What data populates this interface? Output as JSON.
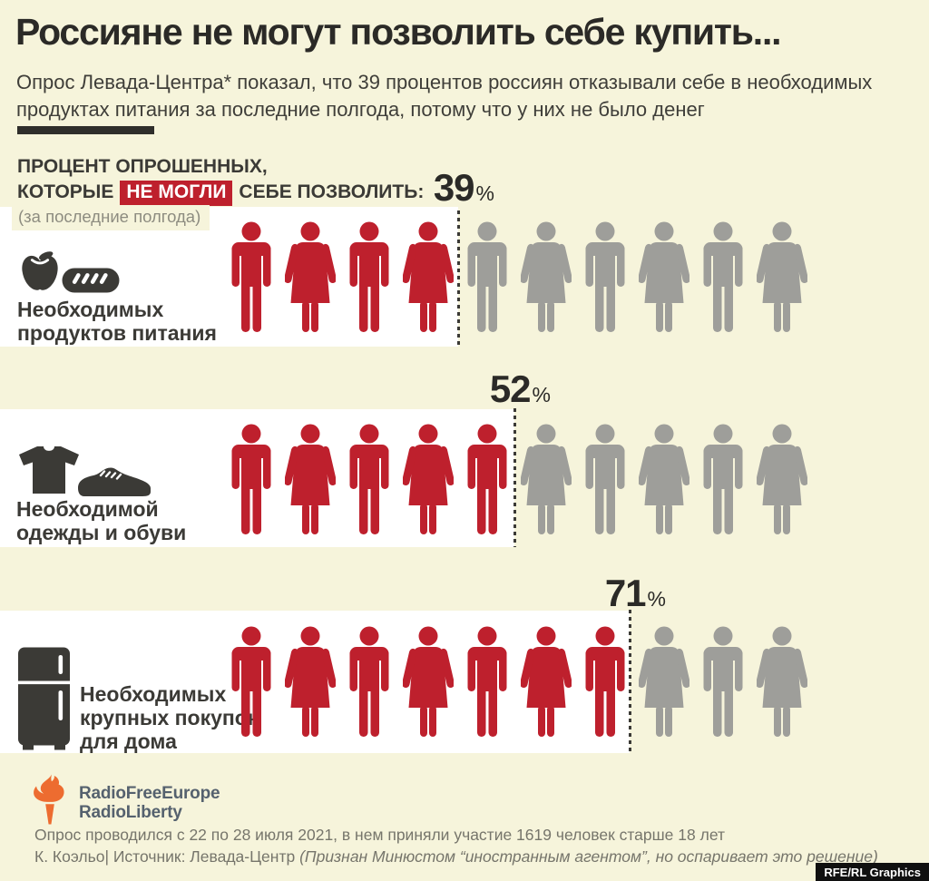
{
  "page": {
    "background": "#F6F4DB"
  },
  "header": {
    "title": "Россияне не могут позволить себе купить...",
    "subtitle": "Опрос Левада-Центра* показал, что 39 процентов россиян отказывали себе в необходимых\nпродуктах питания за последние полгода, потому что у них не было денег"
  },
  "legend": {
    "line1": "ПРОЦЕНТ ОПРОШЕННЫХ,",
    "line2_prefix": "КОТОРЫЕ",
    "line2_highlight": "НЕ МОГЛИ",
    "line2_suffix": "СЕБЕ ПОЗВОЛИТЬ:",
    "note": "(за последние полгода)"
  },
  "chart_data": {
    "type": "bar",
    "variant": "pictogram-people",
    "title": "Россияне не могут позволить себе купить...",
    "unit": "%",
    "total_figures_per_row": 10,
    "figure_pattern": "alternating male/female starting with male; red = could not afford, gray = rest",
    "categories": [
      "Необходимых продуктов питания",
      "Необходимой одежды и обуви",
      "Необходимых крупных покупок для дома"
    ],
    "values": [
      39,
      52,
      71
    ],
    "rows": [
      {
        "label": "Необходимых\nпродуктов питания",
        "percent": 39,
        "percent_label": "39",
        "red_figures": 4,
        "gray_figures": 6,
        "icons": [
          "apple-icon",
          "bread-icon"
        ]
      },
      {
        "label": "Необходимой\nодежды и обуви",
        "percent": 52,
        "percent_label": "52",
        "red_figures": 5,
        "gray_figures": 5,
        "icons": [
          "tshirt-icon",
          "shoe-icon"
        ]
      },
      {
        "label": "Необходимых\nкрупных покупок\nдля дома",
        "percent": 71,
        "percent_label": "71",
        "red_figures": 7,
        "gray_figures": 3,
        "icons": [
          "fridge-icon"
        ]
      }
    ],
    "colors": {
      "red": "#BE202D",
      "gray": "#9E9E9A",
      "band": "#FFFFFF",
      "background": "#F6F4DB",
      "icon_dark": "#3B3A36"
    }
  },
  "footer": {
    "logo_line1": "RadioFreeEurope",
    "logo_line2": "RadioLiberty",
    "note1": "Опрос проводился с 22 по 28 июля 2021, в нем приняли участие 1619 человек старше 18 лет",
    "note2_prefix": "К. Коэльо| Источник: Левада-Центр ",
    "note2_italic": "(Признан Минюстом “иностранным агентом”, но оспаривает это решение)",
    "credit": "RFE/RL Graphics"
  }
}
